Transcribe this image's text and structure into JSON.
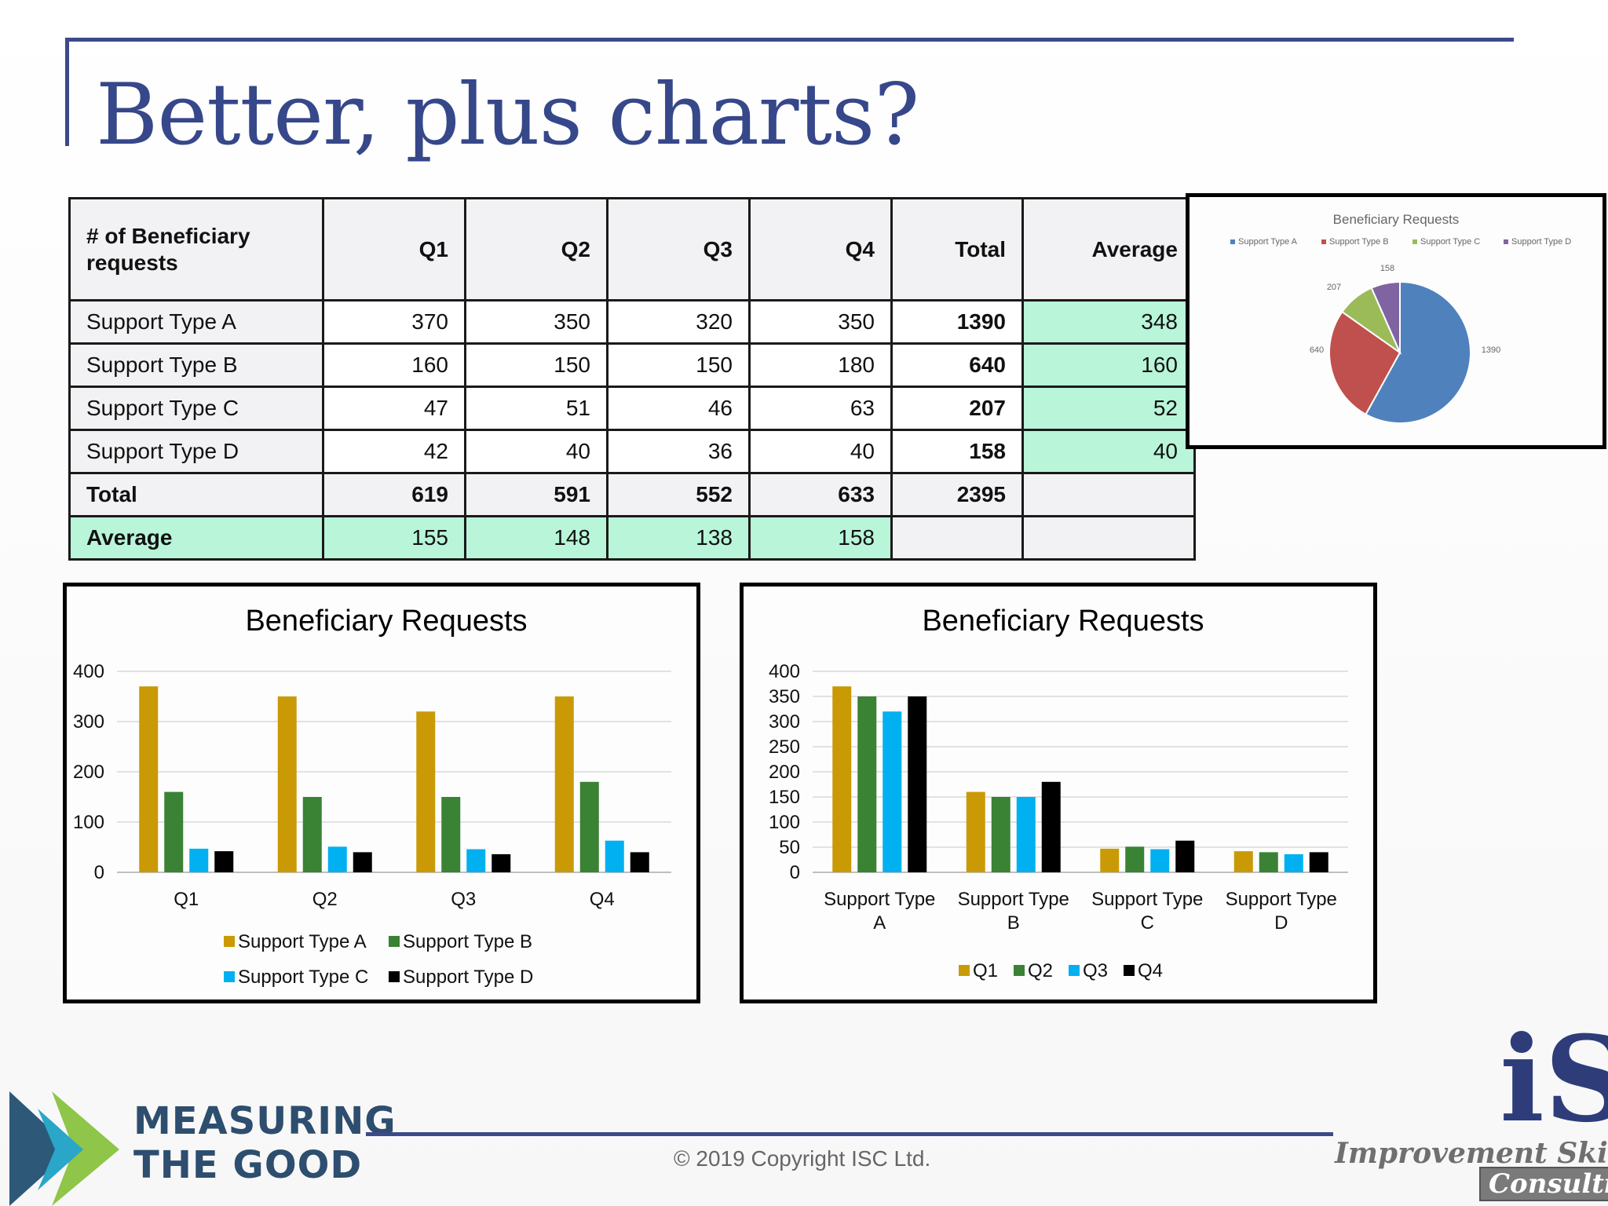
{
  "slide": {
    "title": "Better, plus charts?",
    "copyright": "© 2019 Copyright ISC Ltd.",
    "logo_left": "MEASURING THE GOOD",
    "logo_left_line1": "MEASURING",
    "logo_left_line2": "THE GOOD",
    "logo_right_letters": "iS",
    "logo_right_line1": "Improvement Skills",
    "logo_right_line2": "Consulting"
  },
  "table": {
    "header": [
      "# of Beneficiary requests",
      "Q1",
      "Q2",
      "Q3",
      "Q4",
      "Total",
      "Average"
    ],
    "rows": [
      {
        "label": "Support Type  A",
        "q1": "370",
        "q2": "350",
        "q3": "320",
        "q4": "350",
        "total": "1390",
        "avg": "348"
      },
      {
        "label": "Support Type  B",
        "q1": "160",
        "q2": "150",
        "q3": "150",
        "q4": "180",
        "total": "640",
        "avg": "160"
      },
      {
        "label": "Support Type C",
        "q1": "47",
        "q2": "51",
        "q3": "46",
        "q4": "63",
        "total": "207",
        "avg": "52"
      },
      {
        "label": "Support Type D",
        "q1": "42",
        "q2": "40",
        "q3": "36",
        "q4": "40",
        "total": "158",
        "avg": "40"
      }
    ],
    "total_row": {
      "label": "Total",
      "q1": "619",
      "q2": "591",
      "q3": "552",
      "q4": "633",
      "total": "2395"
    },
    "avg_row": {
      "label": "Average",
      "q1": "155",
      "q2": "148",
      "q3": "138",
      "q4": "158"
    }
  },
  "colors": {
    "type_a": "#c99a06",
    "type_b": "#3a8234",
    "type_c": "#00b0f0",
    "type_d": "#000000",
    "pie_a": "#4f81bd",
    "pie_b": "#c0504d",
    "pie_c": "#9bbb59",
    "pie_d": "#8064a2",
    "avg_fill": "#b8f5d9",
    "accent": "#3c4a8a"
  },
  "chart_data": [
    {
      "type": "pie",
      "title": "Beneficiary Requests",
      "categories": [
        "Support Type A",
        "Support Type B",
        "Support Type C",
        "Support Type D"
      ],
      "values": [
        1390,
        640,
        207,
        158
      ],
      "data_labels": [
        "1390",
        "640",
        "207",
        "158"
      ],
      "legend": "top"
    },
    {
      "type": "bar",
      "title": "Beneficiary Requests",
      "categories": [
        "Q1",
        "Q2",
        "Q3",
        "Q4"
      ],
      "series": [
        {
          "name": "Support Type  A",
          "values": [
            370,
            350,
            320,
            350
          ]
        },
        {
          "name": "Support Type  B",
          "values": [
            160,
            150,
            150,
            180
          ]
        },
        {
          "name": "Support Type C",
          "values": [
            47,
            51,
            46,
            63
          ]
        },
        {
          "name": "Support Type D",
          "values": [
            42,
            40,
            36,
            40
          ]
        }
      ],
      "ylim": [
        0,
        400
      ],
      "yticks": [
        "0",
        "100",
        "200",
        "300",
        "400"
      ],
      "grid": true,
      "legend": "bottom"
    },
    {
      "type": "bar",
      "title": "Beneficiary Requests",
      "categories": [
        "Support Type A",
        "Support Type B",
        "Support Type C",
        "Support Type D"
      ],
      "category_lines": [
        [
          "Support Type",
          "A"
        ],
        [
          "Support Type",
          "B"
        ],
        [
          "Support Type",
          "C"
        ],
        [
          "Support Type",
          "D"
        ]
      ],
      "series": [
        {
          "name": "Q1",
          "values": [
            370,
            160,
            47,
            42
          ]
        },
        {
          "name": "Q2",
          "values": [
            350,
            150,
            51,
            40
          ]
        },
        {
          "name": "Q3",
          "values": [
            320,
            150,
            46,
            36
          ]
        },
        {
          "name": "Q4",
          "values": [
            350,
            180,
            63,
            40
          ]
        }
      ],
      "ylim": [
        0,
        400
      ],
      "yticks": [
        "0",
        "50",
        "100",
        "150",
        "200",
        "250",
        "300",
        "350",
        "400"
      ],
      "grid": true,
      "legend": "bottom"
    }
  ]
}
